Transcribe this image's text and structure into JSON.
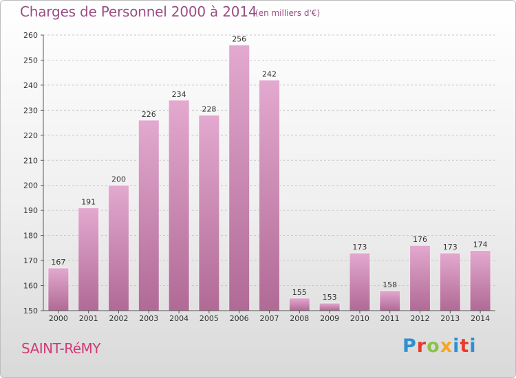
{
  "header": {
    "title": "Charges de Personnel 2000 à 2014",
    "unit": "(en milliers d'€)"
  },
  "footer": {
    "city": "SAINT-RéMY",
    "logo": {
      "text": "Proxiti",
      "colors": [
        "#2f8fd0",
        "#e8392e",
        "#8bc34a",
        "#f5a623",
        "#2f8fd0",
        "#e8392e"
      ]
    }
  },
  "colors": {
    "bar_top": "#e3a9cf",
    "bar_bottom": "#b06a95",
    "grid": "#c8c8c8",
    "axis": "#555555",
    "title": "#9a4d82",
    "city": "#d23a78"
  },
  "chart_data": {
    "type": "bar",
    "title": "Charges de Personnel 2000 à 2014",
    "subtitle": "(en milliers d'€)",
    "xlabel": "",
    "ylabel": "",
    "categories": [
      "2000",
      "2001",
      "2002",
      "2003",
      "2004",
      "2005",
      "2006",
      "2007",
      "2008",
      "2009",
      "2010",
      "2011",
      "2012",
      "2013",
      "2014"
    ],
    "values": [
      167,
      191,
      200,
      226,
      234,
      228,
      256,
      242,
      155,
      153,
      173,
      158,
      176,
      173,
      174
    ],
    "ylim": [
      150,
      260
    ],
    "yticks": [
      150,
      160,
      170,
      180,
      190,
      200,
      210,
      220,
      230,
      240,
      250,
      260
    ],
    "grid": true,
    "legend": "none"
  }
}
